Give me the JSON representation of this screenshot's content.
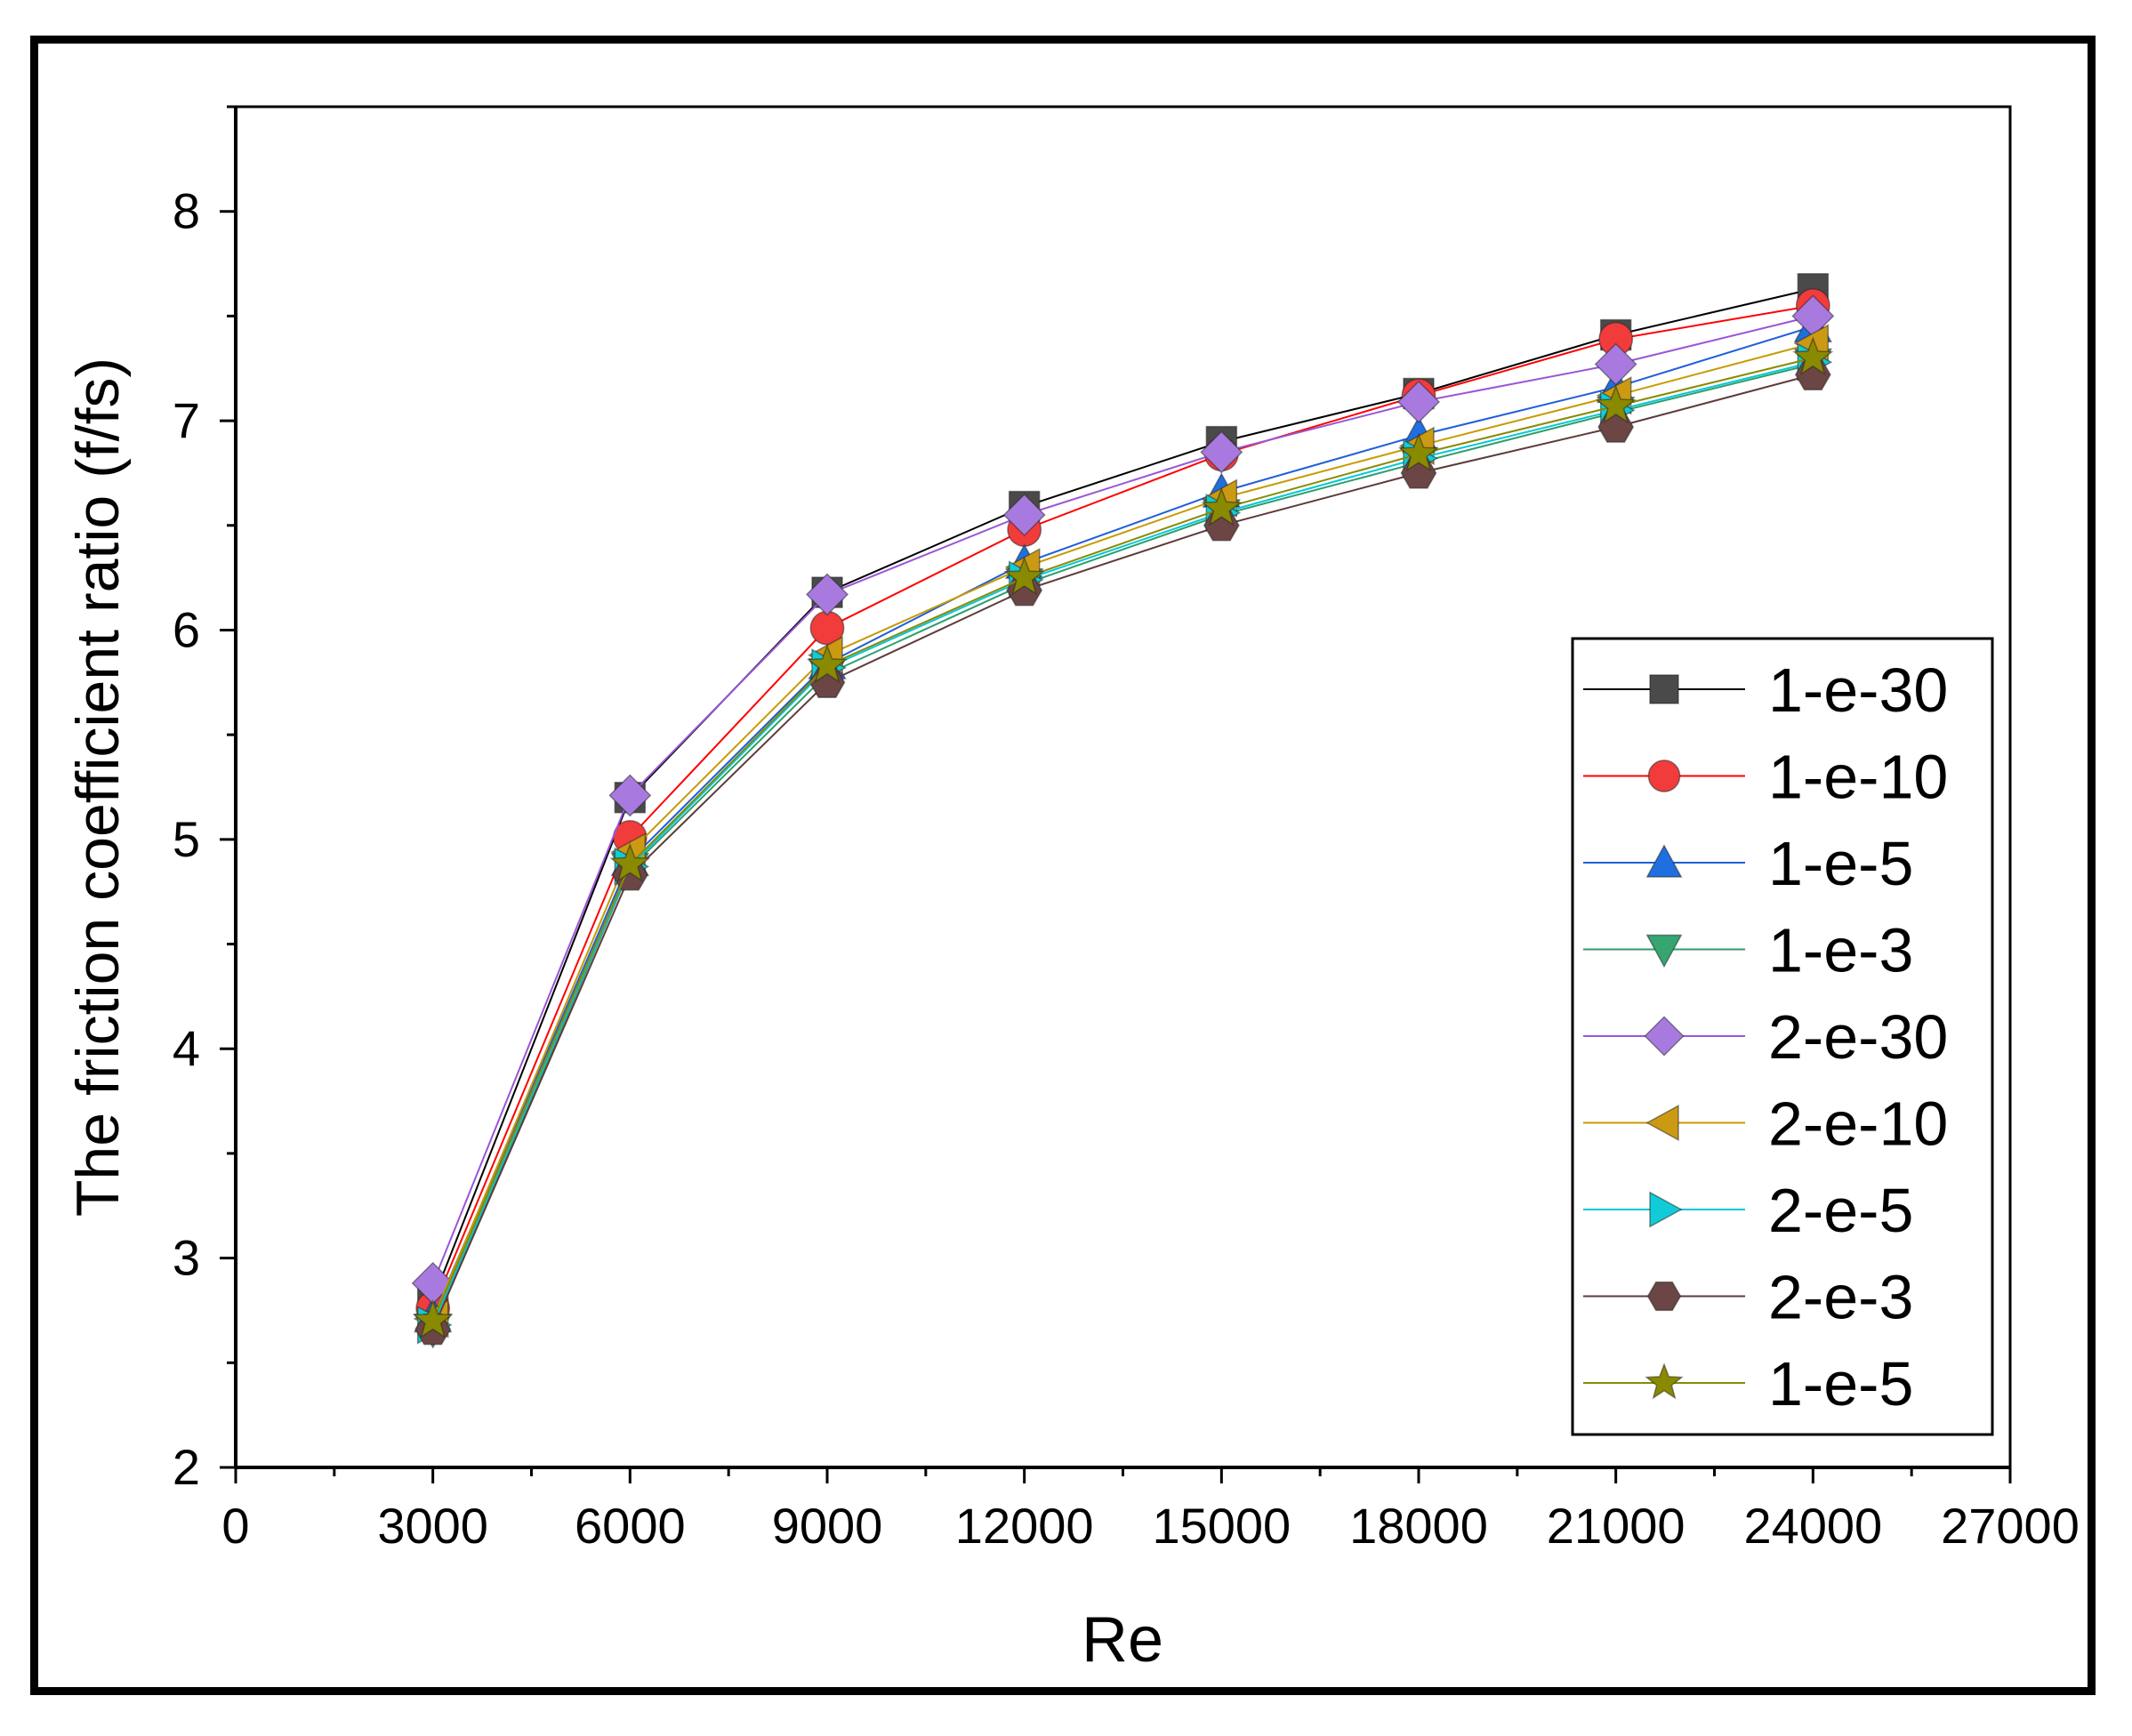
{
  "chart_data": {
    "type": "line",
    "title": "",
    "xlabel": "Re",
    "ylabel": "The friction coefficient ratio (f/fs)",
    "xlim": [
      0,
      27000
    ],
    "ylim": [
      2,
      8.5
    ],
    "x_ticks": [
      0,
      3000,
      6000,
      9000,
      12000,
      15000,
      18000,
      21000,
      24000,
      27000
    ],
    "y_ticks": [
      2,
      3,
      4,
      5,
      6,
      7,
      8
    ],
    "x": [
      3000,
      6000,
      9000,
      12000,
      15000,
      18000,
      21000,
      24000
    ],
    "legend_position": "right",
    "series": [
      {
        "name": "1-e-30",
        "color": "#000000",
        "marker_color": "#4a4a4a",
        "marker": "square",
        "values": [
          2.8,
          5.2,
          6.18,
          6.59,
          6.9,
          7.13,
          7.41,
          7.63
        ]
      },
      {
        "name": "1-e-10",
        "color": "#ff0000",
        "marker_color": "#f23b3b",
        "marker": "circle",
        "values": [
          2.76,
          5.01,
          6.01,
          6.48,
          6.84,
          7.12,
          7.39,
          7.55
        ]
      },
      {
        "name": "1-e-5",
        "color": "#1f5fd9",
        "marker_color": "#1f6fe0",
        "marker": "triangle-up",
        "values": [
          2.72,
          4.9,
          5.84,
          6.32,
          6.66,
          6.93,
          7.16,
          7.45
        ]
      },
      {
        "name": "1-e-3",
        "color": "#2e9e6e",
        "marker_color": "#35a66f",
        "marker": "triangle-down",
        "values": [
          2.66,
          4.86,
          5.79,
          6.22,
          6.55,
          6.8,
          7.04,
          7.27
        ]
      },
      {
        "name": "2-e-30",
        "color": "#9a56d6",
        "marker_color": "#a87ae0",
        "marker": "diamond",
        "values": [
          2.88,
          5.21,
          6.17,
          6.55,
          6.85,
          7.09,
          7.27,
          7.5
        ]
      },
      {
        "name": "2-e-10",
        "color": "#c79a00",
        "marker_color": "#cc9a12",
        "marker": "triangle-left",
        "values": [
          2.71,
          4.94,
          5.88,
          6.3,
          6.63,
          6.88,
          7.12,
          7.37
        ]
      },
      {
        "name": "2-e-5",
        "color": "#00c7d9",
        "marker_color": "#12cbd8",
        "marker": "triangle-right",
        "values": [
          2.68,
          4.87,
          5.82,
          6.24,
          6.56,
          6.82,
          7.05,
          7.28
        ]
      },
      {
        "name": "2-e-3",
        "color": "#5e3b3b",
        "marker_color": "#6b4645",
        "marker": "hexagon",
        "values": [
          2.66,
          4.83,
          5.75,
          6.19,
          6.5,
          6.75,
          6.97,
          7.22
        ]
      },
      {
        "name": "1-e-5",
        "color": "#8a8a00",
        "marker_color": "#8a8a00",
        "marker": "star",
        "values": [
          2.7,
          4.88,
          5.83,
          6.25,
          6.58,
          6.84,
          7.07,
          7.3
        ]
      }
    ]
  }
}
